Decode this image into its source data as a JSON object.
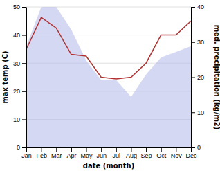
{
  "chart_data": {
    "type": "area",
    "xlabel": "date (month)",
    "ylabel": "max temp (C)",
    "y2label": "med. precipitation (kg/m2)",
    "categories": [
      "Jan",
      "Feb",
      "Mar",
      "Apr",
      "May",
      "Jun",
      "Jul",
      "Aug",
      "Sep",
      "Oct",
      "Nov",
      "Dec"
    ],
    "series": [
      {
        "type": "area",
        "color": "#b0b8e8",
        "values": [
          36,
          50,
          50,
          42,
          31,
          24,
          24,
          18,
          26,
          32,
          34,
          36
        ]
      },
      {
        "type": "line",
        "color": "#b03030",
        "axis": "y2",
        "values": [
          28,
          37,
          34,
          26.5,
          26,
          20,
          19.5,
          20,
          24,
          32,
          32,
          36
        ]
      }
    ],
    "ylim": [
      0,
      50
    ],
    "yticks": [
      0,
      10,
      20,
      30,
      40,
      50
    ],
    "y2lim": [
      0,
      40
    ],
    "y2ticks": [
      0,
      10,
      20,
      30,
      40
    ],
    "grid": true
  }
}
